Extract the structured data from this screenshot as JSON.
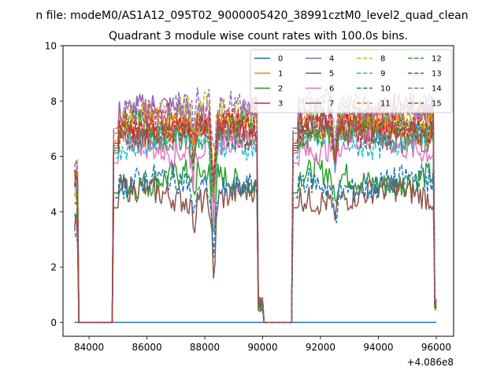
{
  "figure": {
    "suptitle": "n file: modeM0/AS1A12_095T02_9000005420_38991cztM0_level2_quad_clean"
  },
  "chart_data": {
    "type": "line",
    "title": "Quadrant 3 module wise count rates with 100.0s bins.",
    "xlabel": "",
    "ylabel": "",
    "xlim": [
      83100,
      96600
    ],
    "ylim": [
      -0.5,
      10
    ],
    "x_offset_label": "+4.086e8",
    "xticks": [
      84000,
      86000,
      88000,
      90000,
      92000,
      94000,
      96000
    ],
    "xtick_labels": [
      "84000",
      "86000",
      "88000",
      "90000",
      "92000",
      "94000",
      "96000"
    ],
    "yticks": [
      0,
      2,
      4,
      6,
      8,
      10
    ],
    "ytick_labels": [
      "0",
      "2",
      "4",
      "6",
      "8",
      "10"
    ],
    "grid": false,
    "legend_position": "top-right",
    "legend_columns": 4,
    "segments": [
      {
        "x0": 83500,
        "x1": 83600,
        "level": "high"
      },
      {
        "x0": 83600,
        "x1": 84800,
        "level": "zero"
      },
      {
        "x0": 84800,
        "x1": 85000,
        "level": "ramp"
      },
      {
        "x0": 85000,
        "x1": 89800,
        "level": "active"
      },
      {
        "x0": 89800,
        "x1": 90000,
        "level": "ramp"
      },
      {
        "x0": 90000,
        "x1": 91000,
        "level": "zero"
      },
      {
        "x0": 91000,
        "x1": 91200,
        "level": "ramp"
      },
      {
        "x0": 91200,
        "x1": 95900,
        "level": "active"
      },
      {
        "x0": 95900,
        "x1": 96000,
        "level": "ramp"
      }
    ],
    "dips": [
      {
        "x": 87600,
        "depth": 1.0
      },
      {
        "x": 88300,
        "depth": 3.0
      },
      {
        "x": 92500,
        "depth": 1.2
      }
    ],
    "series": [
      {
        "name": "0",
        "color": "#1f77b4",
        "dash": "solid",
        "mean": 0.0,
        "start": 0.0
      },
      {
        "name": "1",
        "color": "#ff7f0e",
        "dash": "solid",
        "mean": 7.0,
        "start": 4.6
      },
      {
        "name": "2",
        "color": "#2ca02c",
        "dash": "solid",
        "mean": 5.2,
        "start": 3.8
      },
      {
        "name": "3",
        "color": "#d62728",
        "dash": "solid",
        "mean": 7.2,
        "start": 5.0
      },
      {
        "name": "4",
        "color": "#9467bd",
        "dash": "solid",
        "mean": 7.6,
        "start": 5.3
      },
      {
        "name": "5",
        "color": "#8c564b",
        "dash": "solid",
        "mean": 4.6,
        "start": 3.4
      },
      {
        "name": "6",
        "color": "#e377c2",
        "dash": "solid",
        "mean": 6.4,
        "start": 4.4
      },
      {
        "name": "7",
        "color": "#7f7f7f",
        "dash": "solid",
        "mean": 6.8,
        "start": 4.8
      },
      {
        "name": "8",
        "color": "#bcbd22",
        "dash": "dashed",
        "mean": 7.6,
        "start": 5.2
      },
      {
        "name": "9",
        "color": "#17becf",
        "dash": "dashed",
        "mean": 6.6,
        "start": 4.7
      },
      {
        "name": "10",
        "color": "#1f77b4",
        "dash": "dashed",
        "mean": 5.0,
        "start": 3.6
      },
      {
        "name": "11",
        "color": "#ff7f0e",
        "dash": "dashed",
        "mean": 7.3,
        "start": 5.1
      },
      {
        "name": "12",
        "color": "#2ca02c",
        "dash": "dashed",
        "mean": 7.0,
        "start": 4.9
      },
      {
        "name": "13",
        "color": "#d62728",
        "dash": "dashed",
        "mean": 7.1,
        "start": 5.0
      },
      {
        "name": "14",
        "color": "#9467bd",
        "dash": "dashed",
        "mean": 7.8,
        "start": 5.9
      },
      {
        "name": "15",
        "color": "#8c564b",
        "dash": "dashed",
        "mean": 6.9,
        "start": 5.4
      }
    ]
  }
}
